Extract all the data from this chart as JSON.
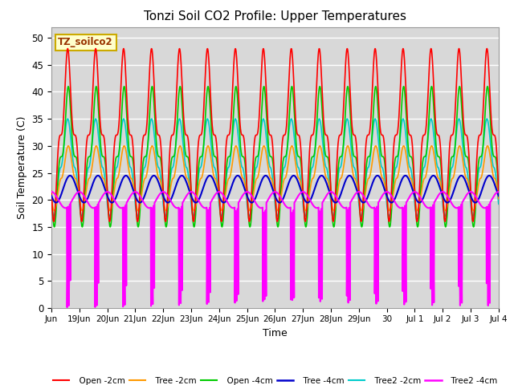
{
  "title": "Tonzi Soil CO2 Profile: Upper Temperatures",
  "xlabel": "Time",
  "ylabel": "Soil Temperature (C)",
  "ylim": [
    0,
    52
  ],
  "background_color": "#d8d8d8",
  "grid_color": "#ffffff",
  "annotation_text": "TZ_soilco2",
  "annotation_bg": "#ffffcc",
  "annotation_border": "#ccaa00",
  "series_colors": [
    "#ff0000",
    "#ff9900",
    "#00cc00",
    "#0000cc",
    "#00cccc",
    "#ff00ff"
  ],
  "series_labels": [
    "Open -2cm",
    "Tree -2cm",
    "Open -4cm",
    "Tree -4cm",
    "Tree2 -2cm",
    "Tree2 -4cm"
  ],
  "tick_labels": [
    "Jun",
    "19Jun",
    "20Jun",
    "21Jun",
    "22Jun",
    "23Jun",
    "24Jun",
    "25Jun",
    "26Jun",
    "27Jun",
    "28Jun",
    "29Jun",
    "30",
    "Jul 1",
    "Jul 2",
    "Jul 3",
    "Jul 4"
  ]
}
